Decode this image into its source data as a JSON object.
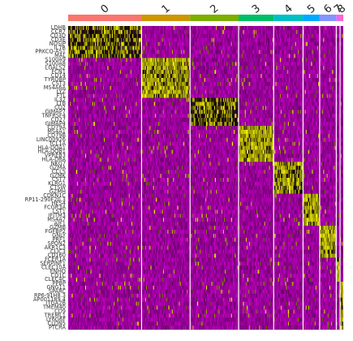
{
  "chart_data": {
    "type": "heatmap",
    "title": "",
    "xlabel": "",
    "ylabel": "",
    "colors": {
      "low": "#ff00ff",
      "mid": "#000000",
      "high": "#ffff00",
      "background": "#440d4b"
    },
    "clusters": [
      {
        "label": "0",
        "color": "#f8766d",
        "cells": 1150
      },
      {
        "label": "1",
        "color": "#cd9600",
        "cells": 760
      },
      {
        "label": "2",
        "color": "#7cae00",
        "cells": 760
      },
      {
        "label": "3",
        "color": "#00be67",
        "cells": 550
      },
      {
        "label": "4",
        "color": "#00bfc4",
        "cells": 460
      },
      {
        "label": "5",
        "color": "#00a9ff",
        "cells": 260
      },
      {
        "label": "6",
        "color": "#8494ff",
        "cells": 260
      },
      {
        "label": "7",
        "color": "#e76bf3",
        "cells": 60
      },
      {
        "label": "8",
        "color": "#ff61cc",
        "cells": 50
      }
    ],
    "genes": [
      {
        "name": "LDHB",
        "cluster": 0,
        "level": 0.55
      },
      {
        "name": "CCR7",
        "cluster": 0,
        "level": 0.5
      },
      {
        "name": "CD3D",
        "cluster": 0,
        "level": 0.5
      },
      {
        "name": "CD3E",
        "cluster": 0,
        "level": 0.5
      },
      {
        "name": "NOSIP",
        "cluster": 0,
        "level": 0.45
      },
      {
        "name": "IL7R",
        "cluster": 0,
        "level": 0.45
      },
      {
        "name": "PRKCQ-AS1",
        "cluster": 0,
        "level": 0.4
      },
      {
        "name": "MAL",
        "cluster": 0,
        "level": 0.4
      },
      {
        "name": "S100A9",
        "cluster": 1,
        "level": 0.95
      },
      {
        "name": "S100A8",
        "cluster": 1,
        "level": 0.95
      },
      {
        "name": "LGALS2",
        "cluster": 1,
        "level": 0.9
      },
      {
        "name": "FCN1",
        "cluster": 1,
        "level": 0.9
      },
      {
        "name": "CD14",
        "cluster": 1,
        "level": 0.85
      },
      {
        "name": "TYROBP",
        "cluster": 1,
        "level": 0.85
      },
      {
        "name": "CST3",
        "cluster": 1,
        "level": 0.8
      },
      {
        "name": "MS4A6A",
        "cluster": 1,
        "level": 0.8
      },
      {
        "name": "LYZ",
        "cluster": 1,
        "level": 0.85
      },
      {
        "name": "FTL",
        "cluster": 1,
        "level": 0.8
      },
      {
        "name": "IL32",
        "cluster": 2,
        "level": 0.5
      },
      {
        "name": "LTB",
        "cluster": 2,
        "level": 0.5
      },
      {
        "name": "CD2",
        "cluster": 2,
        "level": 0.5
      },
      {
        "name": "GIMAP7",
        "cluster": 2,
        "level": 0.45
      },
      {
        "name": "TNFRSF4",
        "cluster": 2,
        "level": 0.45
      },
      {
        "name": "CD27",
        "cluster": 2,
        "level": 0.45
      },
      {
        "name": "GIMAP4",
        "cluster": 2,
        "level": 0.45
      },
      {
        "name": "CD79A",
        "cluster": 3,
        "level": 0.95
      },
      {
        "name": "MS4A1",
        "cluster": 3,
        "level": 0.95
      },
      {
        "name": "CD79B",
        "cluster": 3,
        "level": 0.9
      },
      {
        "name": "LINC00926",
        "cluster": 3,
        "level": 0.9
      },
      {
        "name": "TCL1A",
        "cluster": 3,
        "level": 0.9
      },
      {
        "name": "HLA-DQA1",
        "cluster": 3,
        "level": 0.85
      },
      {
        "name": "HLA-DQB1",
        "cluster": 3,
        "level": 0.85
      },
      {
        "name": "VPREB3",
        "cluster": 3,
        "level": 0.85
      },
      {
        "name": "HLA-DRA",
        "cluster": 3,
        "level": 0.8
      },
      {
        "name": "NKG7",
        "cluster": 4,
        "level": 0.85
      },
      {
        "name": "GZMA",
        "cluster": 4,
        "level": 0.8
      },
      {
        "name": "CCL5",
        "cluster": 4,
        "level": 0.8
      },
      {
        "name": "GZMK",
        "cluster": 4,
        "level": 0.75
      },
      {
        "name": "CST7",
        "cluster": 4,
        "level": 0.75
      },
      {
        "name": "KLRG1",
        "cluster": 4,
        "level": 0.7
      },
      {
        "name": "CTSW",
        "cluster": 4,
        "level": 0.7
      },
      {
        "name": "GZMH",
        "cluster": 4,
        "level": 0.7
      },
      {
        "name": "CDKN1C",
        "cluster": 5,
        "level": 0.9
      },
      {
        "name": "RP11-290F20.3",
        "cluster": 5,
        "level": 0.9
      },
      {
        "name": "HES4",
        "cluster": 5,
        "level": 0.85
      },
      {
        "name": "FCGR3A",
        "cluster": 5,
        "level": 0.9
      },
      {
        "name": "LST1",
        "cluster": 5,
        "level": 0.85
      },
      {
        "name": "IFITM3",
        "cluster": 5,
        "level": 0.85
      },
      {
        "name": "MS4A7",
        "cluster": 5,
        "level": 0.85
      },
      {
        "name": "AIF1",
        "cluster": 5,
        "level": 0.8
      },
      {
        "name": "GZMB",
        "cluster": 6,
        "level": 0.95
      },
      {
        "name": "FGFBP2",
        "cluster": 6,
        "level": 0.9
      },
      {
        "name": "GNLY",
        "cluster": 6,
        "level": 0.95
      },
      {
        "name": "PRF1",
        "cluster": 6,
        "level": 0.9
      },
      {
        "name": "SPON2",
        "cluster": 6,
        "level": 0.9
      },
      {
        "name": "AKR1C3",
        "cluster": 6,
        "level": 0.85
      },
      {
        "name": "CLIC3",
        "cluster": 6,
        "level": 0.85
      },
      {
        "name": "CD160",
        "cluster": 6,
        "level": 0.8
      },
      {
        "name": "FCER1A",
        "cluster": 7,
        "level": 0.95
      },
      {
        "name": "SERPINF1",
        "cluster": 7,
        "level": 0.9
      },
      {
        "name": "CLEC10A",
        "cluster": 7,
        "level": 0.9
      },
      {
        "name": "ENHO",
        "cluster": 7,
        "level": 0.85
      },
      {
        "name": "CD1C",
        "cluster": 7,
        "level": 0.85
      },
      {
        "name": "CLEC4C",
        "cluster": 7,
        "level": 0.8
      },
      {
        "name": "PPBP",
        "cluster": 8,
        "level": 0.95
      },
      {
        "name": "GNG11",
        "cluster": 8,
        "level": 0.95
      },
      {
        "name": "SPARC",
        "cluster": 8,
        "level": 0.9
      },
      {
        "name": "RP6-91H8.3",
        "cluster": 8,
        "level": 0.9
      },
      {
        "name": "AP001189.4",
        "cluster": 8,
        "level": 0.85
      },
      {
        "name": "ITGA2B",
        "cluster": 8,
        "level": 0.85
      },
      {
        "name": "TMEM40",
        "cluster": 8,
        "level": 0.85
      },
      {
        "name": "CD9",
        "cluster": 8,
        "level": 0.8
      },
      {
        "name": "TREML1",
        "cluster": 8,
        "level": 0.8
      },
      {
        "name": "LY6G6F",
        "cluster": 8,
        "level": 0.8
      },
      {
        "name": "CLDN5",
        "cluster": 8,
        "level": 0.75
      },
      {
        "name": "PTCRA",
        "cluster": 8,
        "level": 0.75
      }
    ]
  }
}
